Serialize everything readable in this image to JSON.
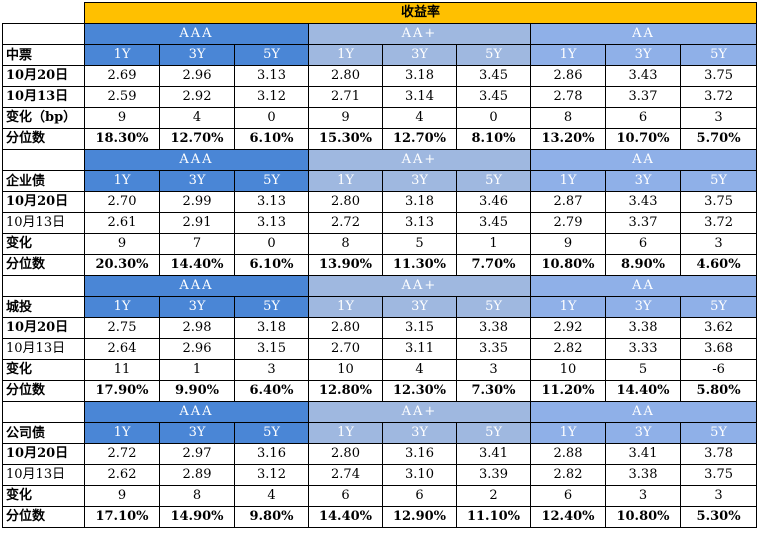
{
  "header": {
    "title": "收益率"
  },
  "groups": [
    {
      "name": "AAA",
      "tenors": [
        "1Y",
        "3Y",
        "5Y"
      ],
      "color": "#4a86d6"
    },
    {
      "name": "AA+",
      "tenors": [
        "1Y",
        "3Y",
        "5Y"
      ],
      "color": "#9fb8e0"
    },
    {
      "name": "AA",
      "tenors": [
        "1Y",
        "3Y",
        "5Y"
      ],
      "color": "#8fb0e8"
    }
  ],
  "sections": [
    {
      "name": "中票",
      "rows": [
        {
          "label": "10月20日",
          "values": [
            "2.69",
            "2.96",
            "3.13",
            "2.80",
            "3.18",
            "3.45",
            "2.86",
            "3.43",
            "3.75"
          ]
        },
        {
          "label": "10月13日",
          "values": [
            "2.59",
            "2.92",
            "3.12",
            "2.71",
            "3.14",
            "3.45",
            "2.78",
            "3.37",
            "3.72"
          ]
        },
        {
          "label": "变化（bp）",
          "values": [
            "9",
            "4",
            "0",
            "9",
            "4",
            "0",
            "8",
            "6",
            "3"
          ]
        },
        {
          "label": "分位数",
          "values": [
            "18.30%",
            "12.70%",
            "6.10%",
            "15.30%",
            "12.70%",
            "8.10%",
            "13.20%",
            "10.70%",
            "5.70%"
          ]
        }
      ]
    },
    {
      "name": "企业债",
      "rows": [
        {
          "label": "10月20日",
          "values": [
            "2.70",
            "2.99",
            "3.13",
            "2.80",
            "3.18",
            "3.46",
            "2.87",
            "3.43",
            "3.75"
          ]
        },
        {
          "label": "10月13日",
          "values": [
            "2.61",
            "2.91",
            "3.13",
            "2.72",
            "3.13",
            "3.45",
            "2.79",
            "3.37",
            "3.72"
          ]
        },
        {
          "label": "变化",
          "values": [
            "9",
            "7",
            "0",
            "8",
            "5",
            "1",
            "9",
            "6",
            "3"
          ]
        },
        {
          "label": "分位数",
          "values": [
            "20.30%",
            "14.40%",
            "6.10%",
            "13.90%",
            "11.30%",
            "7.70%",
            "10.80%",
            "8.90%",
            "4.60%"
          ]
        }
      ]
    },
    {
      "name": "城投",
      "rows": [
        {
          "label": "10月20日",
          "values": [
            "2.75",
            "2.98",
            "3.18",
            "2.80",
            "3.15",
            "3.38",
            "2.92",
            "3.38",
            "3.62"
          ]
        },
        {
          "label": "10月13日",
          "values": [
            "2.64",
            "2.96",
            "3.15",
            "2.70",
            "3.11",
            "3.35",
            "2.82",
            "3.33",
            "3.68"
          ]
        },
        {
          "label": "变化",
          "values": [
            "11",
            "1",
            "3",
            "10",
            "4",
            "3",
            "10",
            "5",
            "-6"
          ]
        },
        {
          "label": "分位数",
          "values": [
            "17.90%",
            "9.90%",
            "6.40%",
            "12.80%",
            "12.30%",
            "7.30%",
            "11.20%",
            "14.40%",
            "5.80%"
          ]
        }
      ]
    },
    {
      "name": "公司债",
      "rows": [
        {
          "label": "10月20日",
          "values": [
            "2.72",
            "2.97",
            "3.16",
            "2.80",
            "3.16",
            "3.41",
            "2.88",
            "3.41",
            "3.78"
          ]
        },
        {
          "label": "10月13日",
          "values": [
            "2.62",
            "2.89",
            "3.12",
            "2.74",
            "3.10",
            "3.39",
            "2.82",
            "3.38",
            "3.75"
          ]
        },
        {
          "label": "变化",
          "values": [
            "9",
            "8",
            "4",
            "6",
            "6",
            "2",
            "6",
            "3",
            "3"
          ]
        },
        {
          "label": "分位数",
          "values": [
            "17.10%",
            "14.90%",
            "9.80%",
            "14.40%",
            "12.90%",
            "11.10%",
            "12.40%",
            "10.80%",
            "5.30%"
          ]
        }
      ]
    }
  ]
}
